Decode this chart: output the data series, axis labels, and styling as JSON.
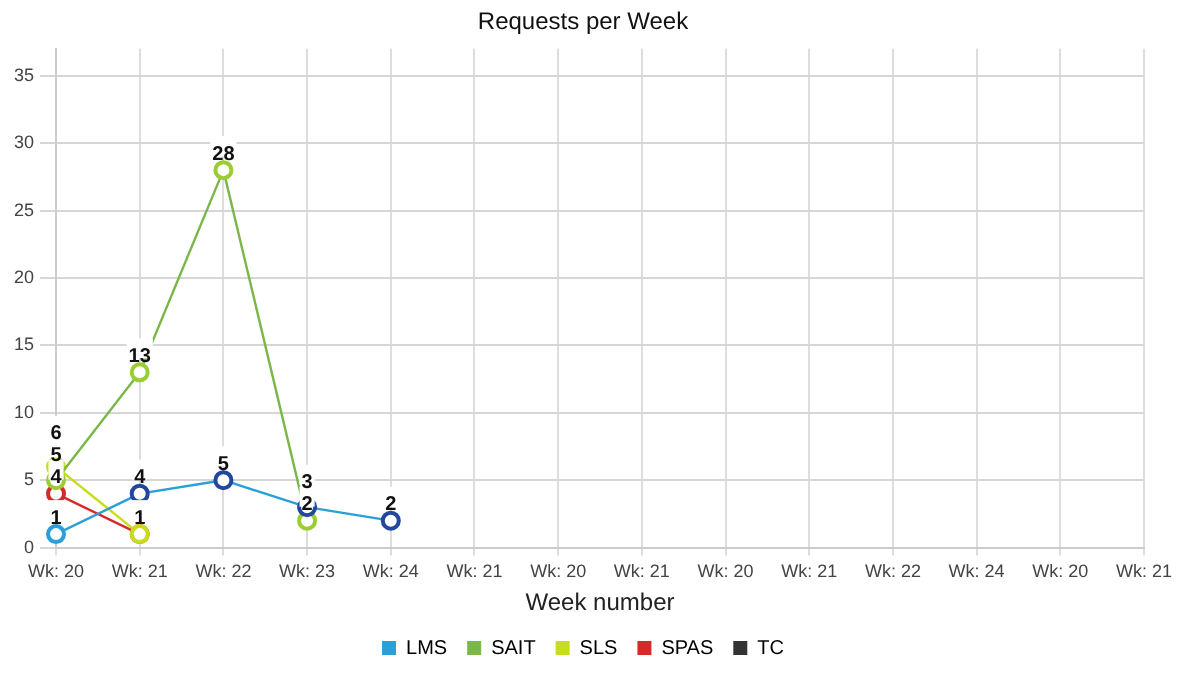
{
  "chart_data": {
    "type": "line",
    "title": "Requests per Week",
    "xlabel": "Week number",
    "categories": [
      "Wk: 20",
      "Wk: 21",
      "Wk: 22",
      "Wk: 23",
      "Wk: 24",
      "Wk: 21",
      "Wk: 20",
      "Wk: 21",
      "Wk: 20",
      "Wk: 21",
      "Wk: 22",
      "Wk: 24",
      "Wk: 20",
      "Wk: 21"
    ],
    "series": [
      {
        "name": "LMS",
        "color": "#2a9fd8",
        "colors": [
          "#2a9fd8",
          "#2346a0",
          "#2346a0",
          "#2346a0",
          "#2346a0",
          null,
          null,
          null,
          null,
          null,
          null,
          null,
          null,
          null
        ],
        "values": [
          1,
          4,
          5,
          3,
          2,
          null,
          null,
          null,
          null,
          null,
          null,
          null,
          null,
          null
        ],
        "value_labels": [
          "1",
          "4",
          "5",
          "3",
          "2",
          null,
          null,
          null,
          null,
          null,
          null,
          null,
          null,
          null
        ]
      },
      {
        "name": "SAIT",
        "color": "#7ab648",
        "colors": [
          "#9acd32",
          "#9acd32",
          "#9acd32",
          "#9acd32",
          null,
          null,
          null,
          null,
          null,
          null,
          null,
          null,
          null,
          null
        ],
        "values": [
          5,
          13,
          28,
          2,
          null,
          null,
          null,
          null,
          null,
          null,
          null,
          null,
          null,
          null
        ],
        "value_labels": [
          "5",
          "13",
          "28",
          "2",
          null,
          null,
          null,
          null,
          null,
          null,
          null,
          null,
          null,
          null
        ]
      },
      {
        "name": "SLS",
        "color": "#c8dc1e",
        "values": [
          6,
          1,
          null,
          null,
          null,
          null,
          null,
          null,
          null,
          null,
          null,
          null,
          null,
          null
        ],
        "value_labels": [
          "6",
          null,
          null,
          null,
          null,
          null,
          null,
          null,
          null,
          null,
          null,
          null,
          null,
          null
        ]
      },
      {
        "name": "SPAS",
        "color": "#d42a2a",
        "values": [
          4,
          1,
          null,
          null,
          null,
          null,
          null,
          null,
          null,
          null,
          null,
          null,
          null,
          null
        ],
        "value_labels": [
          "4",
          "1",
          null,
          null,
          null,
          null,
          null,
          null,
          null,
          null,
          null,
          null,
          null,
          null
        ]
      },
      {
        "name": "TC",
        "color": "#333333",
        "values": [
          null,
          null,
          null,
          null,
          null,
          null,
          null,
          null,
          null,
          null,
          null,
          null,
          null,
          null
        ]
      }
    ],
    "ylim": [
      0,
      37
    ],
    "yticks": [
      0,
      5,
      10,
      15,
      20,
      25,
      30,
      35
    ],
    "grid": true,
    "legend": "bottom",
    "marker": "circle",
    "line_style": "solid"
  }
}
